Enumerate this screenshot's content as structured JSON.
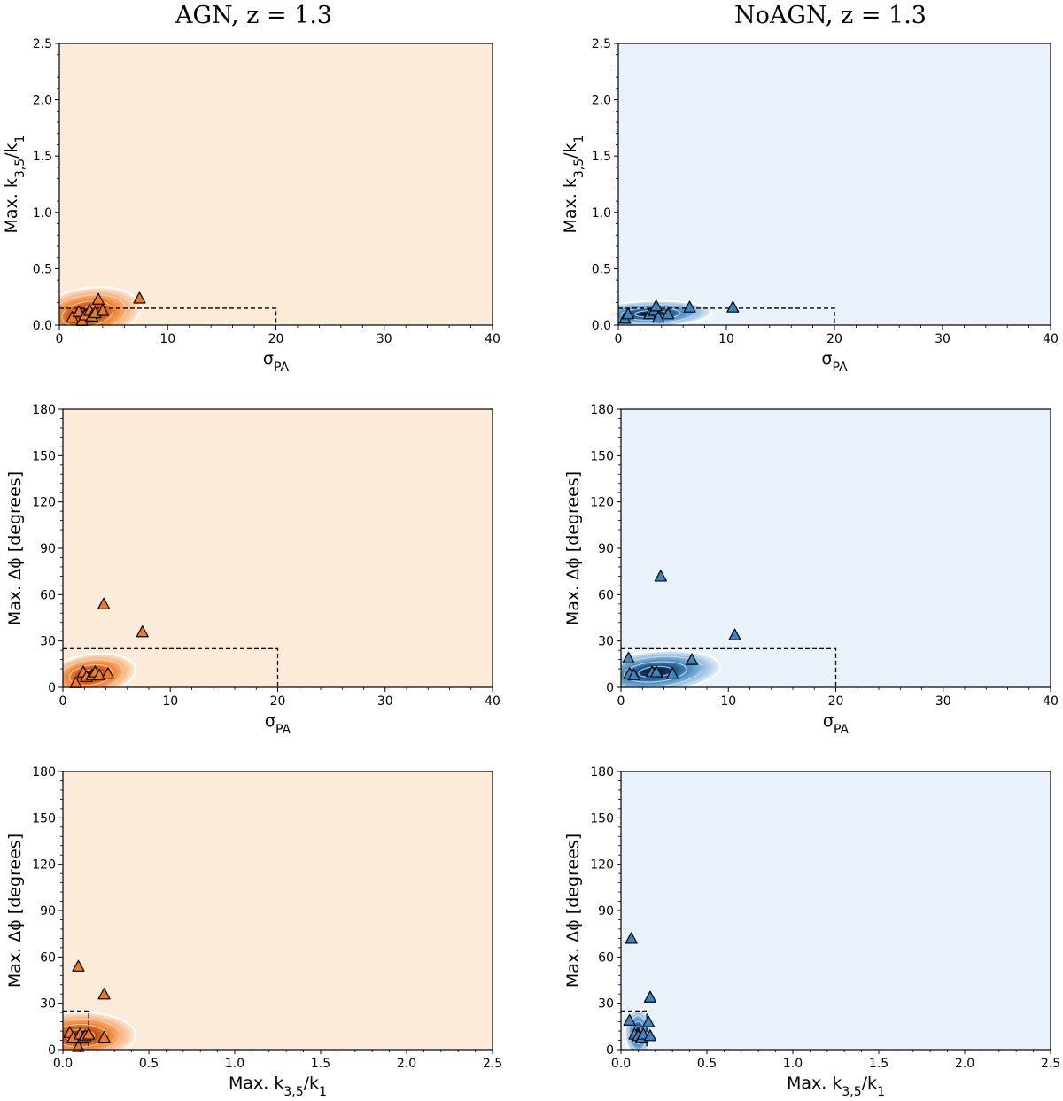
{
  "titles": {
    "left": "AGN, z = 1.3",
    "right": "NoAGN, z = 1.3"
  },
  "colors": {
    "agn_bg": "#fdebda",
    "agn_marker": "#f07a21",
    "agn_dark": "#b33d05",
    "noagn_bg": "#e9f1fb",
    "noagn_marker": "#3a86c0",
    "noagn_dark": "#0b3a6b"
  },
  "chart_data": [
    {
      "id": "agn_k_vs_sigma",
      "type": "scatter",
      "sample": "AGN",
      "xlabel": "σPA",
      "ylabel": "Max. k3,5/k1",
      "xlim": [
        0,
        40
      ],
      "ylim": [
        0,
        2.5
      ],
      "xticks": [
        "0",
        "10",
        "20",
        "30",
        "40"
      ],
      "yticks": [
        "0.0",
        "0.5",
        "1.0",
        "1.5",
        "2.0",
        "2.5"
      ],
      "threshold": {
        "x": 20,
        "y": 0.15
      },
      "kde": {
        "cx": 2.6,
        "cy": 0.1,
        "sx": 2.6,
        "sy": 0.12,
        "rot": 0.25
      },
      "points": [
        [
          1.2,
          0.07
        ],
        [
          1.8,
          0.12
        ],
        [
          2.1,
          0.04
        ],
        [
          2.4,
          0.09
        ],
        [
          2.8,
          0.13
        ],
        [
          3.0,
          0.08
        ],
        [
          3.3,
          0.11
        ],
        [
          3.6,
          0.23
        ],
        [
          4.0,
          0.13
        ],
        [
          7.4,
          0.24
        ]
      ]
    },
    {
      "id": "noagn_k_vs_sigma",
      "type": "scatter",
      "sample": "NoAGN",
      "xlabel": "σPA",
      "ylabel": "Max. k3,5/k1",
      "xlim": [
        0,
        40
      ],
      "ylim": [
        0,
        2.5
      ],
      "xticks": [
        "0",
        "10",
        "20",
        "30",
        "40"
      ],
      "yticks": [
        "0.0",
        "0.5",
        "1.0",
        "1.5",
        "2.0",
        "2.5"
      ],
      "threshold": {
        "x": 20,
        "y": 0.15
      },
      "kde": {
        "cx": 3.0,
        "cy": 0.1,
        "sx": 3.0,
        "sy": 0.06,
        "rot": 0.05
      },
      "points": [
        [
          0.6,
          0.06
        ],
        [
          0.9,
          0.1
        ],
        [
          2.9,
          0.1
        ],
        [
          3.3,
          0.13
        ],
        [
          3.5,
          0.17
        ],
        [
          3.7,
          0.07
        ],
        [
          4.6,
          0.1
        ],
        [
          6.6,
          0.16
        ],
        [
          10.6,
          0.16
        ]
      ]
    },
    {
      "id": "agn_phi_vs_sigma",
      "type": "scatter",
      "sample": "AGN",
      "xlabel": "σPA",
      "ylabel": "Max. Δϕ [degrees]",
      "xlim": [
        0,
        40
      ],
      "ylim": [
        0,
        180
      ],
      "xticks": [
        "0",
        "10",
        "20",
        "30",
        "40"
      ],
      "yticks": [
        "0",
        "30",
        "60",
        "90",
        "120",
        "150",
        "180"
      ],
      "threshold": {
        "x": 20,
        "y": 25
      },
      "kde": {
        "cx": 2.6,
        "cy": 8.0,
        "sx": 2.2,
        "sy": 7.0,
        "rot": 0.25
      },
      "points": [
        [
          1.2,
          3
        ],
        [
          1.9,
          10
        ],
        [
          2.2,
          7
        ],
        [
          2.7,
          8
        ],
        [
          3.0,
          10
        ],
        [
          3.4,
          8
        ],
        [
          4.2,
          9
        ],
        [
          3.8,
          54
        ],
        [
          7.4,
          36
        ]
      ]
    },
    {
      "id": "noagn_phi_vs_sigma",
      "type": "scatter",
      "sample": "NoAGN",
      "xlabel": "σPA",
      "ylabel": "Max. Δϕ [degrees]",
      "xlim": [
        0,
        40
      ],
      "ylim": [
        0,
        180
      ],
      "xticks": [
        "0",
        "10",
        "20",
        "30",
        "40"
      ],
      "yticks": [
        "0",
        "30",
        "60",
        "90",
        "120",
        "150",
        "180"
      ],
      "threshold": {
        "x": 20,
        "y": 25
      },
      "kde": {
        "cx": 3.2,
        "cy": 10.0,
        "sx": 3.2,
        "sy": 7.0,
        "rot": 0.15
      },
      "points": [
        [
          0.7,
          19
        ],
        [
          0.8,
          9
        ],
        [
          1.2,
          8
        ],
        [
          2.9,
          10
        ],
        [
          3.3,
          10
        ],
        [
          4.8,
          9
        ],
        [
          6.6,
          18
        ],
        [
          3.7,
          72
        ],
        [
          10.6,
          34
        ]
      ]
    },
    {
      "id": "agn_phi_vs_k",
      "type": "scatter",
      "sample": "AGN",
      "xlabel": "Max. k3,5/k1",
      "ylabel": "Max. Δϕ [degrees]",
      "xlim": [
        0,
        2.5
      ],
      "ylim": [
        0,
        180
      ],
      "xticks": [
        "0.0",
        "0.5",
        "1.0",
        "1.5",
        "2.0",
        "2.5"
      ],
      "yticks": [
        "0",
        "30",
        "60",
        "90",
        "120",
        "150",
        "180"
      ],
      "threshold": {
        "x": 0.15,
        "y": 25
      },
      "kde": {
        "cx": 0.1,
        "cy": 9.0,
        "sx": 0.17,
        "sy": 8.0,
        "rot": 0.02
      },
      "points": [
        [
          0.04,
          11
        ],
        [
          0.06,
          8
        ],
        [
          0.09,
          2
        ],
        [
          0.1,
          10
        ],
        [
          0.12,
          8
        ],
        [
          0.13,
          9
        ],
        [
          0.15,
          10
        ],
        [
          0.24,
          8
        ],
        [
          0.09,
          54
        ],
        [
          0.24,
          36
        ]
      ]
    },
    {
      "id": "noagn_phi_vs_k",
      "type": "scatter",
      "sample": "NoAGN",
      "xlabel": "Max. k3,5/k1",
      "ylabel": "Max. Δϕ [degrees]",
      "xlim": [
        0,
        2.5
      ],
      "ylim": [
        0,
        180
      ],
      "xticks": [
        "0.0",
        "0.5",
        "1.0",
        "1.5",
        "2.0",
        "2.5"
      ],
      "yticks": [
        "0",
        "30",
        "60",
        "90",
        "120",
        "150",
        "180"
      ],
      "threshold": {
        "x": 0.15,
        "y": 25
      },
      "kde": {
        "cx": 0.1,
        "cy": 11.0,
        "sx": 0.04,
        "sy": 8.0,
        "rot": 0.0
      },
      "points": [
        [
          0.05,
          19
        ],
        [
          0.08,
          10
        ],
        [
          0.1,
          9
        ],
        [
          0.12,
          8
        ],
        [
          0.13,
          10
        ],
        [
          0.16,
          18
        ],
        [
          0.17,
          34
        ],
        [
          0.17,
          9
        ],
        [
          0.06,
          72
        ]
      ]
    }
  ]
}
